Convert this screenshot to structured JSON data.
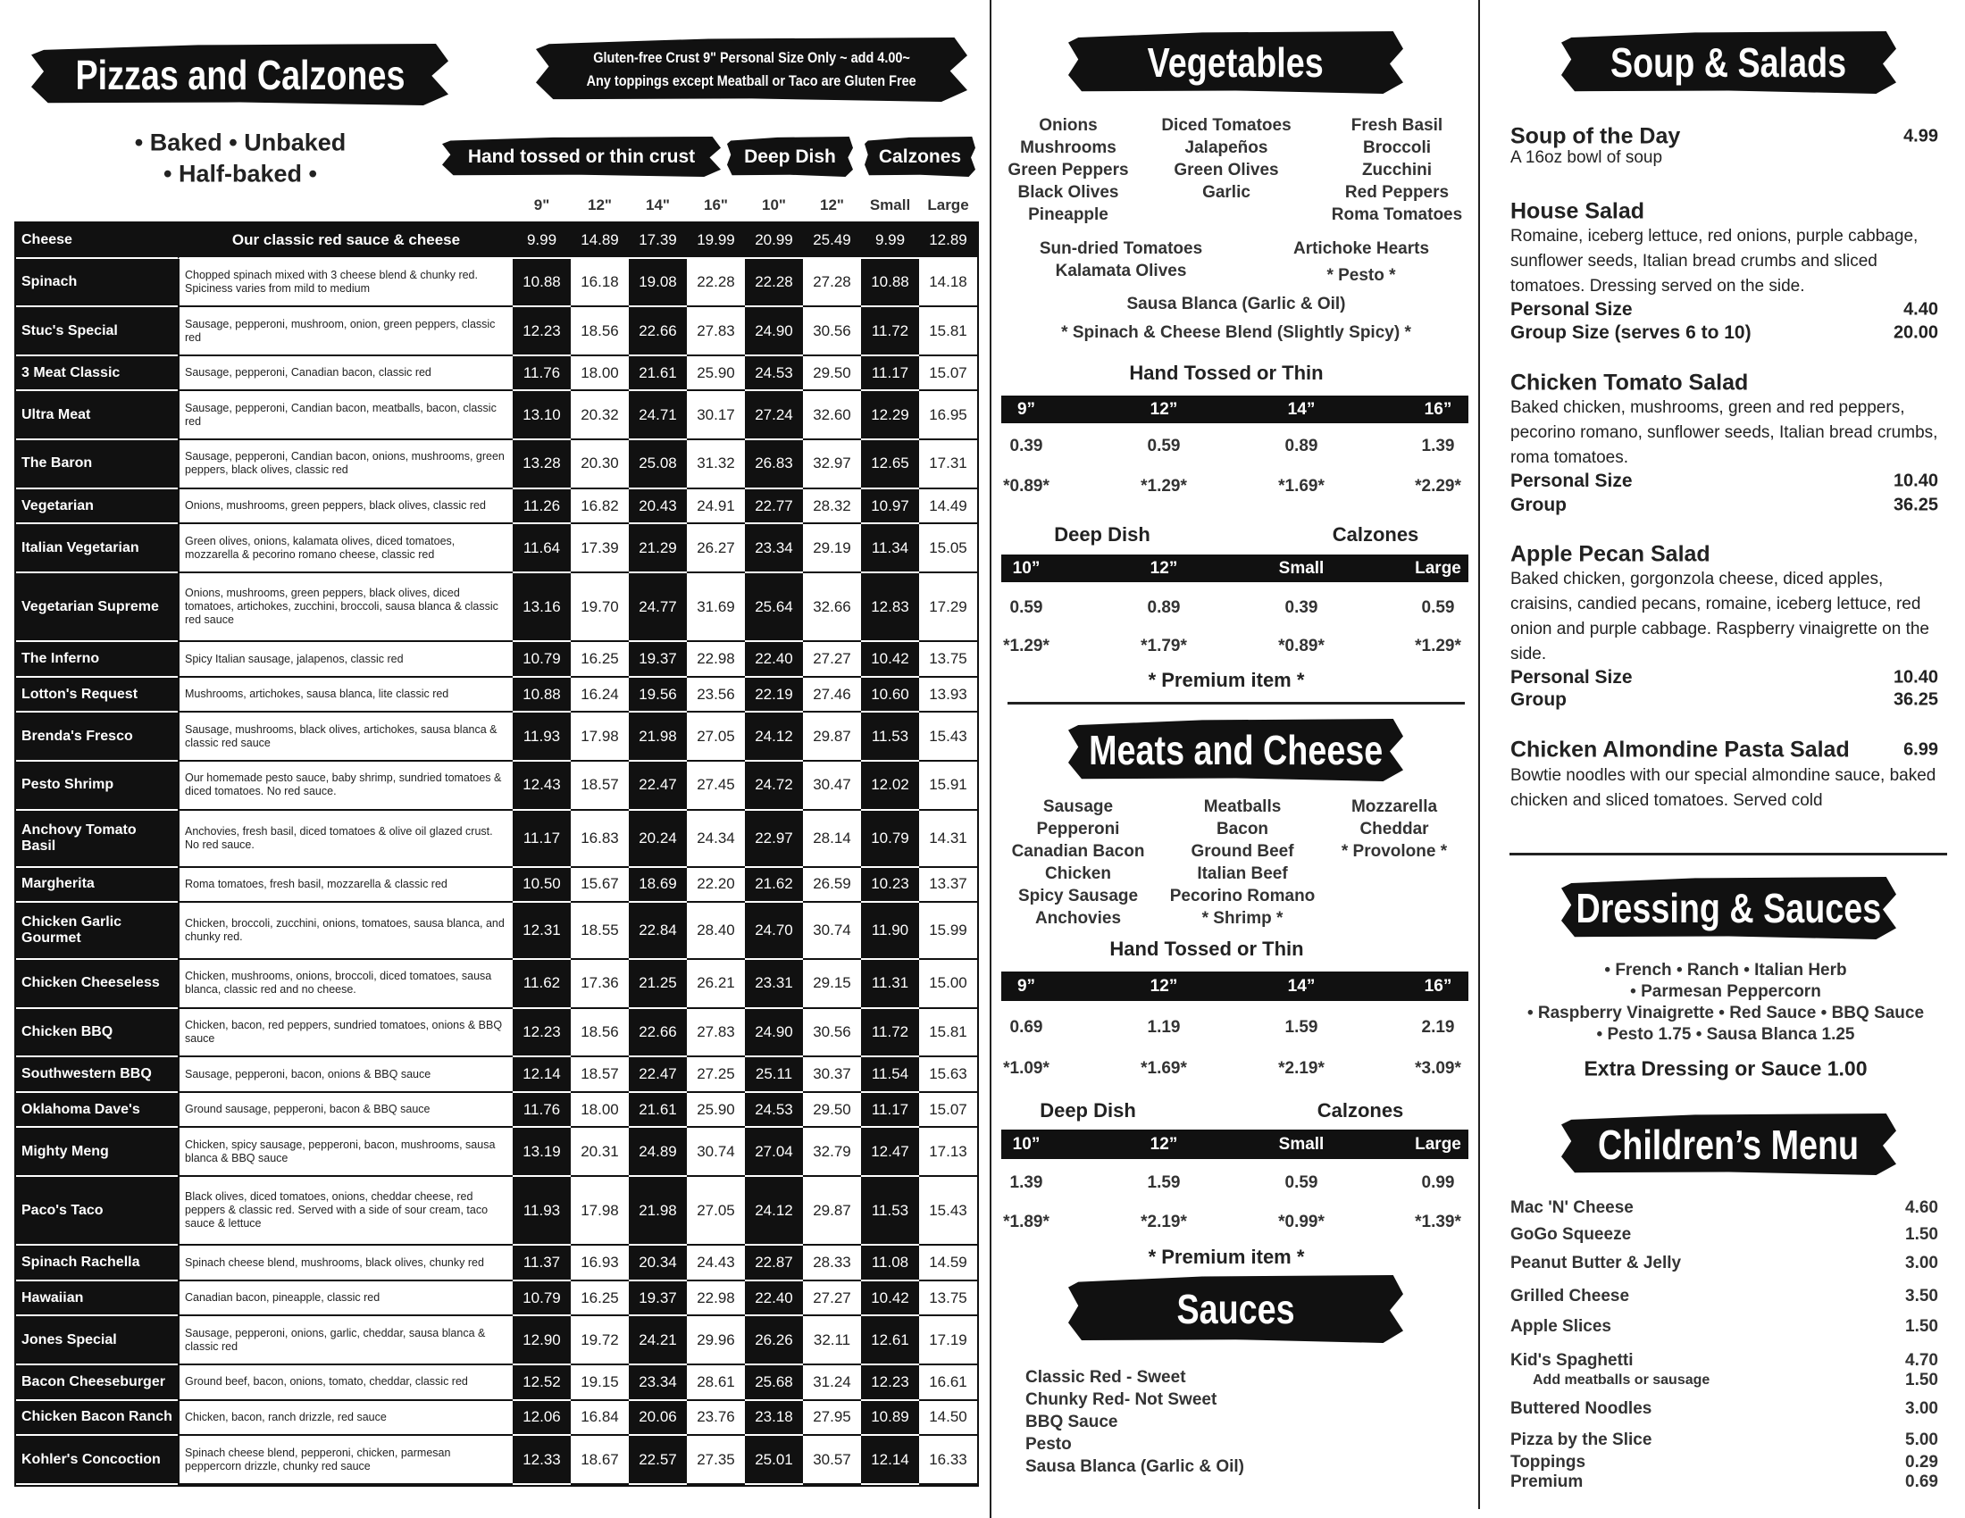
{
  "pizzas": {
    "title": "Pizzas and Calzones",
    "gluten_note": [
      "Gluten-free Crust 9\" Personal Size Only ~ add 4.00~",
      "Any toppings except Meatball or Taco are Gluten Free"
    ],
    "styles": [
      "• Baked • Unbaked",
      "• Half-baked •"
    ],
    "groups": [
      "Hand tossed or thin crust",
      "Deep Dish",
      "Calzones"
    ],
    "sizes": [
      "9\"",
      "12\"",
      "14\"",
      "16\"",
      "10\"",
      "12\"",
      "Small",
      "Large"
    ],
    "rows": [
      {
        "name": "Cheese",
        "desc": "Our classic red sauce & cheese",
        "prices": [
          "9.99",
          "14.89",
          "17.39",
          "19.99",
          "20.99",
          "25.49",
          "9.99",
          "12.89"
        ]
      },
      {
        "name": "Spinach",
        "desc": "Chopped spinach mixed with 3 cheese blend & chunky red. Spiciness varies from mild to medium",
        "prices": [
          "10.88",
          "16.18",
          "19.08",
          "22.28",
          "22.28",
          "27.28",
          "10.88",
          "14.18"
        ]
      },
      {
        "name": "Stuc's Special",
        "desc": "Sausage, pepperoni, mushroom, onion, green peppers, classic red",
        "prices": [
          "12.23",
          "18.56",
          "22.66",
          "27.83",
          "24.90",
          "30.56",
          "11.72",
          "15.81"
        ]
      },
      {
        "name": "3 Meat Classic",
        "desc": "Sausage, pepperoni, Canadian bacon, classic red",
        "prices": [
          "11.76",
          "18.00",
          "21.61",
          "25.90",
          "24.53",
          "29.50",
          "11.17",
          "15.07"
        ]
      },
      {
        "name": "Ultra Meat",
        "desc": "Sausage, pepperoni, Candian bacon, meatballs, bacon, classic red",
        "prices": [
          "13.10",
          "20.32",
          "24.71",
          "30.17",
          "27.24",
          "32.60",
          "12.29",
          "16.95"
        ]
      },
      {
        "name": "The Baron",
        "desc": "Sausage, pepperoni, Candian bacon, onions, mushrooms, green peppers, black olives, classic red",
        "prices": [
          "13.28",
          "20.30",
          "25.08",
          "31.32",
          "26.83",
          "32.97",
          "12.65",
          "17.31"
        ]
      },
      {
        "name": "Vegetarian",
        "desc": "Onions, mushrooms, green peppers, black olives, classic red",
        "prices": [
          "11.26",
          "16.82",
          "20.43",
          "24.91",
          "22.77",
          "28.32",
          "10.97",
          "14.49"
        ]
      },
      {
        "name": "Italian Vegetarian",
        "desc": "Green olives, onions, kalamata olives, diced tomatoes, mozzarella & pecorino romano cheese, classic red",
        "prices": [
          "11.64",
          "17.39",
          "21.29",
          "26.27",
          "23.34",
          "29.19",
          "11.34",
          "15.05"
        ]
      },
      {
        "name": "Vegetarian Supreme",
        "desc": "Onions, mushrooms, green peppers, black olives, diced tomatoes, artichokes, zucchini, broccoli, sausa blanca & classic red sauce",
        "prices": [
          "13.16",
          "19.70",
          "24.77",
          "31.69",
          "25.64",
          "32.66",
          "12.83",
          "17.29"
        ]
      },
      {
        "name": "The Inferno",
        "desc": "Spicy Italian sausage, jalapenos, classic red",
        "prices": [
          "10.79",
          "16.25",
          "19.37",
          "22.98",
          "22.40",
          "27.27",
          "10.42",
          "13.75"
        ]
      },
      {
        "name": "Lotton's Request",
        "desc": "Mushrooms, artichokes, sausa blanca, lite classic red",
        "prices": [
          "10.88",
          "16.24",
          "19.56",
          "23.56",
          "22.19",
          "27.46",
          "10.60",
          "13.93"
        ]
      },
      {
        "name": "Brenda's Fresco",
        "desc": "Sausage, mushrooms, black olives, artichokes, sausa blanca & classic red sauce",
        "prices": [
          "11.93",
          "17.98",
          "21.98",
          "27.05",
          "24.12",
          "29.87",
          "11.53",
          "15.43"
        ]
      },
      {
        "name": "Pesto Shrimp",
        "desc": "Our homemade pesto sauce, baby shrimp, sundried tomatoes & diced tomatoes. No red sauce.",
        "prices": [
          "12.43",
          "18.57",
          "22.47",
          "27.45",
          "24.72",
          "30.47",
          "12.02",
          "15.91"
        ]
      },
      {
        "name": "Anchovy Tomato Basil",
        "desc": "Anchovies, fresh basil, diced tomatoes & olive oil glazed crust. No red sauce.",
        "prices": [
          "11.17",
          "16.83",
          "20.24",
          "24.34",
          "22.97",
          "28.14",
          "10.79",
          "14.31"
        ]
      },
      {
        "name": "Margherita",
        "desc": "Roma tomatoes, fresh basil, mozzarella & classic red",
        "prices": [
          "10.50",
          "15.67",
          "18.69",
          "22.20",
          "21.62",
          "26.59",
          "10.23",
          "13.37"
        ]
      },
      {
        "name": "Chicken Garlic Gourmet",
        "desc": "Chicken, broccoli, zucchini, onions, tomatoes, sausa blanca, and chunky red.",
        "prices": [
          "12.31",
          "18.55",
          "22.84",
          "28.40",
          "24.70",
          "30.74",
          "11.90",
          "15.99"
        ]
      },
      {
        "name": "Chicken Cheeseless",
        "desc": "Chicken, mushrooms, onions, broccoli, diced tomatoes, sausa blanca, classic red and no cheese.",
        "prices": [
          "11.62",
          "17.36",
          "21.25",
          "26.21",
          "23.31",
          "29.15",
          "11.31",
          "15.00"
        ]
      },
      {
        "name": "Chicken BBQ",
        "desc": "Chicken, bacon, red peppers, sundried tomatoes, onions & BBQ sauce",
        "prices": [
          "12.23",
          "18.56",
          "22.66",
          "27.83",
          "24.90",
          "30.56",
          "11.72",
          "15.81"
        ]
      },
      {
        "name": "Southwestern BBQ",
        "desc": "Sausage, pepperoni, bacon, onions & BBQ sauce",
        "prices": [
          "12.14",
          "18.57",
          "22.47",
          "27.25",
          "25.11",
          "30.37",
          "11.54",
          "15.63"
        ]
      },
      {
        "name": "Oklahoma Dave's",
        "desc": "Ground sausage, pepperoni, bacon & BBQ sauce",
        "prices": [
          "11.76",
          "18.00",
          "21.61",
          "25.90",
          "24.53",
          "29.50",
          "11.17",
          "15.07"
        ]
      },
      {
        "name": "Mighty Meng",
        "desc": "Chicken, spicy sausage, pepperoni, bacon, mushrooms, sausa blanca & BBQ sauce",
        "prices": [
          "13.19",
          "20.31",
          "24.89",
          "30.74",
          "27.04",
          "32.79",
          "12.47",
          "17.13"
        ]
      },
      {
        "name": "Paco's Taco",
        "desc": "Black olives, diced tomatoes, onions, cheddar cheese, red peppers & classic red. Served with a side of sour cream, taco sauce & lettuce",
        "prices": [
          "11.93",
          "17.98",
          "21.98",
          "27.05",
          "24.12",
          "29.87",
          "11.53",
          "15.43"
        ]
      },
      {
        "name": "Spinach Rachella",
        "desc": "Spinach cheese blend, mushrooms, black olives, chunky red",
        "prices": [
          "11.37",
          "16.93",
          "20.34",
          "24.43",
          "22.87",
          "28.33",
          "11.08",
          "14.59"
        ]
      },
      {
        "name": "Hawaiian",
        "desc": "Canadian bacon, pineapple, classic red",
        "prices": [
          "10.79",
          "16.25",
          "19.37",
          "22.98",
          "22.40",
          "27.27",
          "10.42",
          "13.75"
        ]
      },
      {
        "name": "Jones Special",
        "desc": "Sausage, pepperoni, onions, garlic, cheddar, sausa blanca & classic red",
        "prices": [
          "12.90",
          "19.72",
          "24.21",
          "29.96",
          "26.26",
          "32.11",
          "12.61",
          "17.19"
        ]
      },
      {
        "name": "Bacon Cheeseburger",
        "desc": "Ground beef, bacon, onions, tomato, cheddar, classic red",
        "prices": [
          "12.52",
          "19.15",
          "23.34",
          "28.61",
          "25.68",
          "31.24",
          "12.23",
          "16.61"
        ]
      },
      {
        "name": "Chicken Bacon Ranch",
        "desc": "Chicken, bacon, ranch drizzle, red sauce",
        "prices": [
          "12.06",
          "16.84",
          "20.06",
          "23.76",
          "23.18",
          "27.95",
          "10.89",
          "14.50"
        ]
      },
      {
        "name": "Kohler's Concoction",
        "desc": "Spinach cheese blend, pepperoni, chicken, parmesan peppercorn drizzle, chunky red sauce",
        "prices": [
          "12.33",
          "18.67",
          "22.57",
          "27.35",
          "25.01",
          "30.57",
          "12.14",
          "16.33"
        ]
      }
    ]
  },
  "vegetables": {
    "title": "Vegetables",
    "columns": [
      [
        "Onions",
        "Mushrooms",
        "Green Peppers",
        "Black Olives",
        "Pineapple"
      ],
      [
        "Diced Tomatoes",
        "Jalapeños",
        "Green Olives",
        "Garlic"
      ],
      [
        "Fresh Basil",
        "Broccoli",
        "Zucchini",
        "Red Peppers",
        "Roma Tomatoes"
      ]
    ],
    "extras": [
      "Sun-dried Tomatoes",
      "Artichoke Hearts",
      "Kalamata Olives",
      "* Pesto *",
      "Sausa Blanca (Garlic & Oil)",
      "* Spinach & Cheese Blend (Slightly Spicy) *"
    ],
    "pricing": {
      "thin_label": "Hand Tossed or Thin",
      "thin_sizes": [
        "9”",
        "12”",
        "14”",
        "16”"
      ],
      "thin_prices": [
        "0.39",
        "0.59",
        "0.89",
        "1.39"
      ],
      "thin_premium": [
        "*0.89*",
        "*1.29*",
        "*1.69*",
        "*2.29*"
      ],
      "deep_label": "Deep Dish",
      "calzone_label": "Calzones",
      "deep_sizes": [
        "10”",
        "12”",
        "Small",
        "Large"
      ],
      "deep_prices": [
        "0.59",
        "0.89",
        "0.39",
        "0.59"
      ],
      "deep_premium": [
        "*1.29*",
        "*1.79*",
        "*0.89*",
        "*1.29*"
      ],
      "premium_note": "* Premium item *"
    }
  },
  "meats": {
    "title": "Meats and Cheese",
    "columns": [
      [
        "Sausage",
        "Pepperoni",
        "Canadian Bacon",
        "Chicken",
        "Spicy Sausage",
        "Anchovies"
      ],
      [
        "Meatballs",
        "Bacon",
        "Ground Beef",
        "Italian Beef",
        "Pecorino Romano",
        "* Shrimp *"
      ],
      [
        "Mozzarella",
        "Cheddar",
        "* Provolone *"
      ]
    ],
    "pricing": {
      "thin_label": "Hand Tossed or Thin",
      "thin_sizes": [
        "9”",
        "12”",
        "14”",
        "16”"
      ],
      "thin_prices": [
        "0.69",
        "1.19",
        "1.59",
        "2.19"
      ],
      "thin_premium": [
        "*1.09*",
        "*1.69*",
        "*2.19*",
        "*3.09*"
      ],
      "deep_label": "Deep Dish",
      "calzone_label": "Calzones",
      "deep_sizes": [
        "10”",
        "12”",
        "Small",
        "Large"
      ],
      "deep_prices": [
        "1.39",
        "1.59",
        "0.59",
        "0.99"
      ],
      "deep_premium": [
        "*1.89*",
        "*2.19*",
        "*0.99*",
        "*1.39*"
      ],
      "premium_note": "* Premium item *"
    }
  },
  "sauces": {
    "title": "Sauces",
    "items": [
      "Classic Red - Sweet",
      "Chunky Red- Not Sweet",
      "BBQ Sauce",
      "Pesto",
      "Sausa Blanca (Garlic & Oil)"
    ]
  },
  "soups": {
    "title": "Soup & Salads",
    "items": [
      {
        "name": "Soup of the Day",
        "price": "4.99",
        "desc": "A 16oz bowl of soup"
      },
      {
        "name": "House Salad",
        "desc": "Romaine, iceberg lettuce, red onions, purple cabbage, sunflower seeds, Italian bread crumbs and sliced tomatoes. Dressing served on the side.",
        "options": [
          {
            "label": "Personal Size",
            "price": "4.40"
          },
          {
            "label": "Group Size (serves 6 to 10)",
            "price": "20.00"
          }
        ]
      },
      {
        "name": "Chicken Tomato Salad",
        "desc": "Baked chicken, mushrooms, green and red peppers, pecorino romano, sunflower seeds, Italian bread crumbs, roma tomatoes.",
        "options": [
          {
            "label": "Personal Size",
            "price": "10.40"
          },
          {
            "label": "Group",
            "price": "36.25"
          }
        ]
      },
      {
        "name": "Apple Pecan Salad",
        "desc": "Baked chicken, gorgonzola cheese, diced apples, craisins, candied pecans, romaine, iceberg lettuce, red onion and purple cabbage. Raspberry vinaigrette on the side.",
        "options": [
          {
            "label": "Personal Size",
            "price": "10.40"
          },
          {
            "label": "Group",
            "price": "36.25"
          }
        ]
      },
      {
        "name": "Chicken Almondine Pasta Salad",
        "price": "6.99",
        "desc": "Bowtie noodles with our special almondine sauce, baked chicken and sliced tomatoes. Served cold"
      }
    ]
  },
  "dressings": {
    "title": "Dressing & Sauces",
    "lines": [
      "• French • Ranch • Italian Herb",
      "• Parmesan Peppercorn",
      "• Raspberry Vinaigrette • Red Sauce • BBQ Sauce",
      "• Pesto 1.75 • Sausa Blanca 1.25"
    ],
    "extra": "Extra Dressing or Sauce 1.00"
  },
  "children": {
    "title": "Children’s Menu",
    "items": [
      {
        "name": "Mac 'N' Cheese",
        "price": "4.60"
      },
      {
        "name": "GoGo Squeeze",
        "price": "1.50"
      },
      {
        "name": "Peanut Butter & Jelly",
        "price": "3.00"
      },
      {
        "name": "Grilled Cheese",
        "price": "3.50"
      },
      {
        "name": "Apple Slices",
        "price": "1.50"
      },
      {
        "name": "Kid's Spaghetti",
        "price": "4.70",
        "addon": {
          "name": "Add meatballs or sausage",
          "price": "1.50"
        }
      },
      {
        "name": "Buttered Noodles",
        "price": "3.00"
      },
      {
        "name": "Pizza by the Slice",
        "price": "5.00"
      },
      {
        "name": "Toppings",
        "price": "0.29"
      },
      {
        "name": "Premium",
        "price": "0.69"
      }
    ]
  }
}
